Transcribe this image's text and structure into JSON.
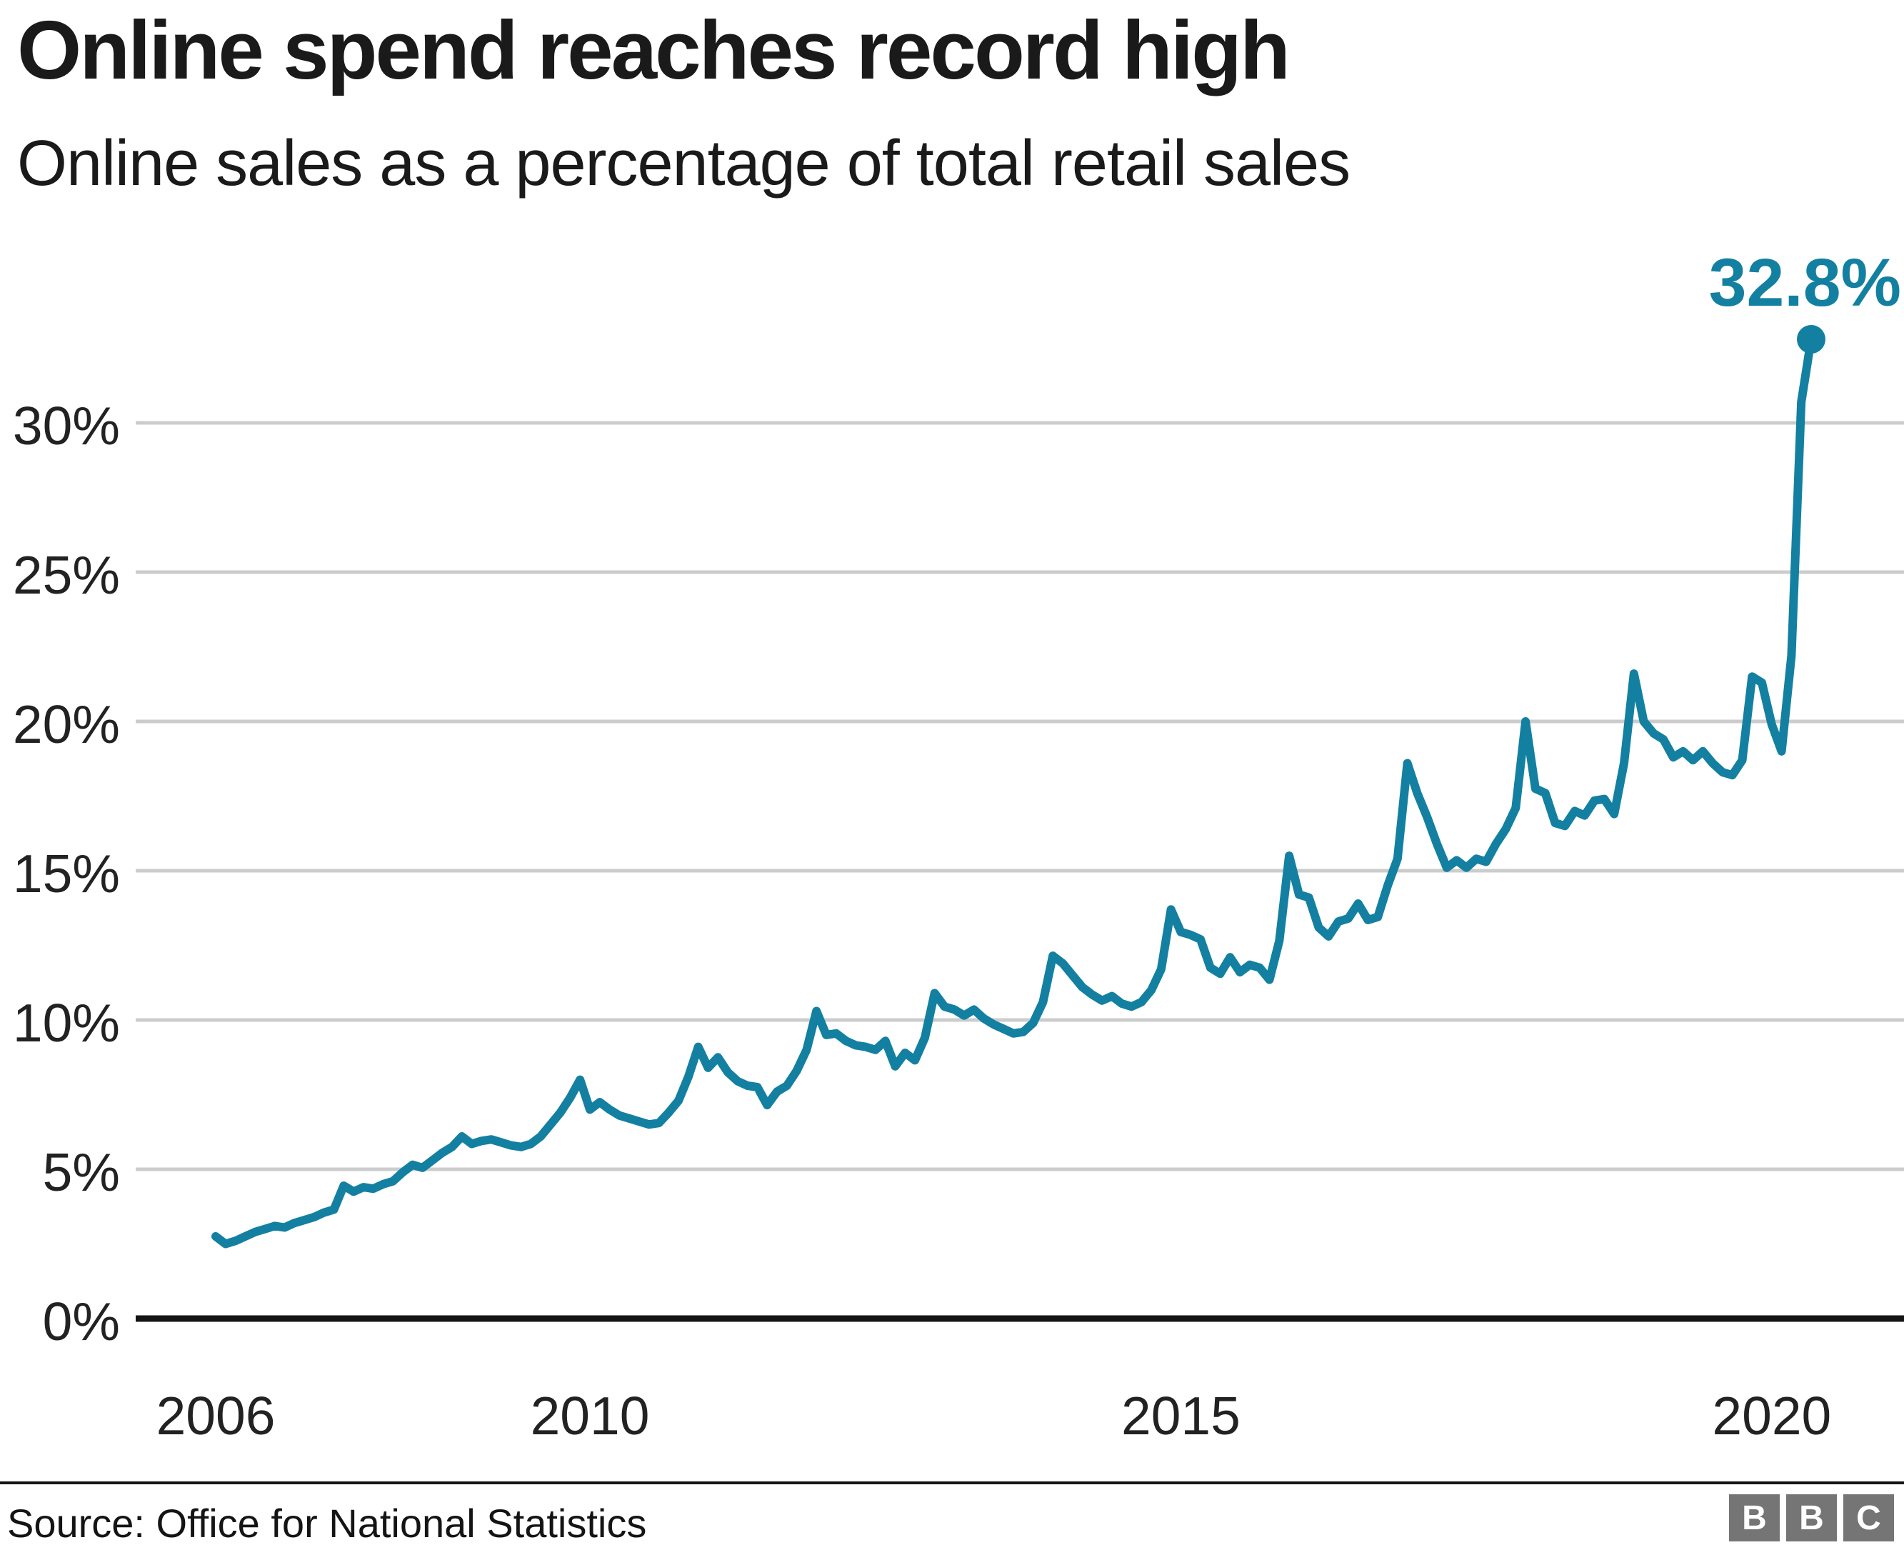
{
  "header": {
    "title": "Online spend reaches record high",
    "subtitle": "Online sales as a percentage of total retail sales"
  },
  "chart_data": {
    "type": "line",
    "title": "Online spend reaches record high",
    "subtitle": "Online sales as a percentage of total retail sales",
    "xlabel": "",
    "ylabel": "Online sales as a percentage of total retail sales",
    "unit": "%",
    "frequency": "monthly",
    "start_month": "2006-11",
    "end_month": "2020-05",
    "ylim": [
      0,
      34
    ],
    "grid": true,
    "legend": false,
    "values": [
      2.75,
      2.5,
      2.6,
      2.75,
      2.9,
      3.0,
      3.1,
      3.05,
      3.2,
      3.3,
      3.4,
      3.55,
      3.65,
      4.45,
      4.25,
      4.4,
      4.35,
      4.5,
      4.6,
      4.9,
      5.15,
      5.05,
      5.3,
      5.55,
      5.75,
      6.1,
      5.85,
      5.95,
      6.0,
      5.9,
      5.8,
      5.75,
      5.85,
      6.1,
      6.5,
      6.9,
      7.4,
      8.0,
      7.0,
      7.25,
      7.0,
      6.8,
      6.7,
      6.6,
      6.5,
      6.55,
      6.9,
      7.3,
      8.1,
      9.1,
      8.4,
      8.75,
      8.25,
      7.95,
      7.8,
      7.75,
      7.15,
      7.6,
      7.8,
      8.3,
      9.0,
      10.3,
      9.5,
      9.55,
      9.3,
      9.15,
      9.1,
      9.0,
      9.3,
      8.45,
      8.9,
      8.65,
      9.4,
      10.9,
      10.45,
      10.35,
      10.15,
      10.35,
      10.05,
      9.85,
      9.7,
      9.55,
      9.6,
      9.9,
      10.6,
      12.15,
      11.9,
      11.5,
      11.1,
      10.85,
      10.65,
      10.8,
      10.55,
      10.45,
      10.6,
      11.0,
      11.7,
      13.7,
      12.95,
      12.85,
      12.7,
      11.75,
      11.55,
      12.1,
      11.6,
      11.85,
      11.75,
      11.35,
      12.65,
      15.5,
      14.2,
      14.1,
      13.1,
      12.8,
      13.3,
      13.4,
      13.9,
      13.35,
      13.45,
      14.5,
      15.4,
      18.6,
      17.6,
      16.8,
      15.9,
      15.1,
      15.35,
      15.1,
      15.4,
      15.3,
      15.9,
      16.4,
      17.1,
      20.0,
      17.75,
      17.6,
      16.6,
      16.5,
      17.0,
      16.85,
      17.35,
      17.4,
      16.9,
      18.6,
      21.6,
      20.0,
      19.6,
      19.4,
      18.8,
      19.0,
      18.7,
      19.0,
      18.6,
      18.3,
      18.2,
      18.7,
      21.5,
      21.3,
      19.9,
      19.0,
      22.2,
      30.7,
      32.8
    ],
    "yticks": [
      {
        "value": 0,
        "label": "0%"
      },
      {
        "value": 5,
        "label": "5%"
      },
      {
        "value": 10,
        "label": "10%"
      },
      {
        "value": 15,
        "label": "15%"
      },
      {
        "value": 20,
        "label": "20%"
      },
      {
        "value": 25,
        "label": "25%"
      },
      {
        "value": 30,
        "label": "30%"
      }
    ],
    "xticks": [
      {
        "index": 0,
        "label": "2006"
      },
      {
        "index": 38,
        "label": "2010"
      },
      {
        "index": 98,
        "label": "2015"
      },
      {
        "index": 158,
        "label": "2020"
      }
    ],
    "annotation": {
      "text": "32.8%",
      "value": 32.8
    },
    "colors": {
      "line": "#1380A1",
      "grid": "#CCCCCC",
      "axis": "#141414",
      "text": "#222222"
    }
  },
  "footer": {
    "source": "Source: Office for National Statistics",
    "logo": {
      "letters": [
        "B",
        "B",
        "C"
      ],
      "color": "#757575"
    }
  }
}
